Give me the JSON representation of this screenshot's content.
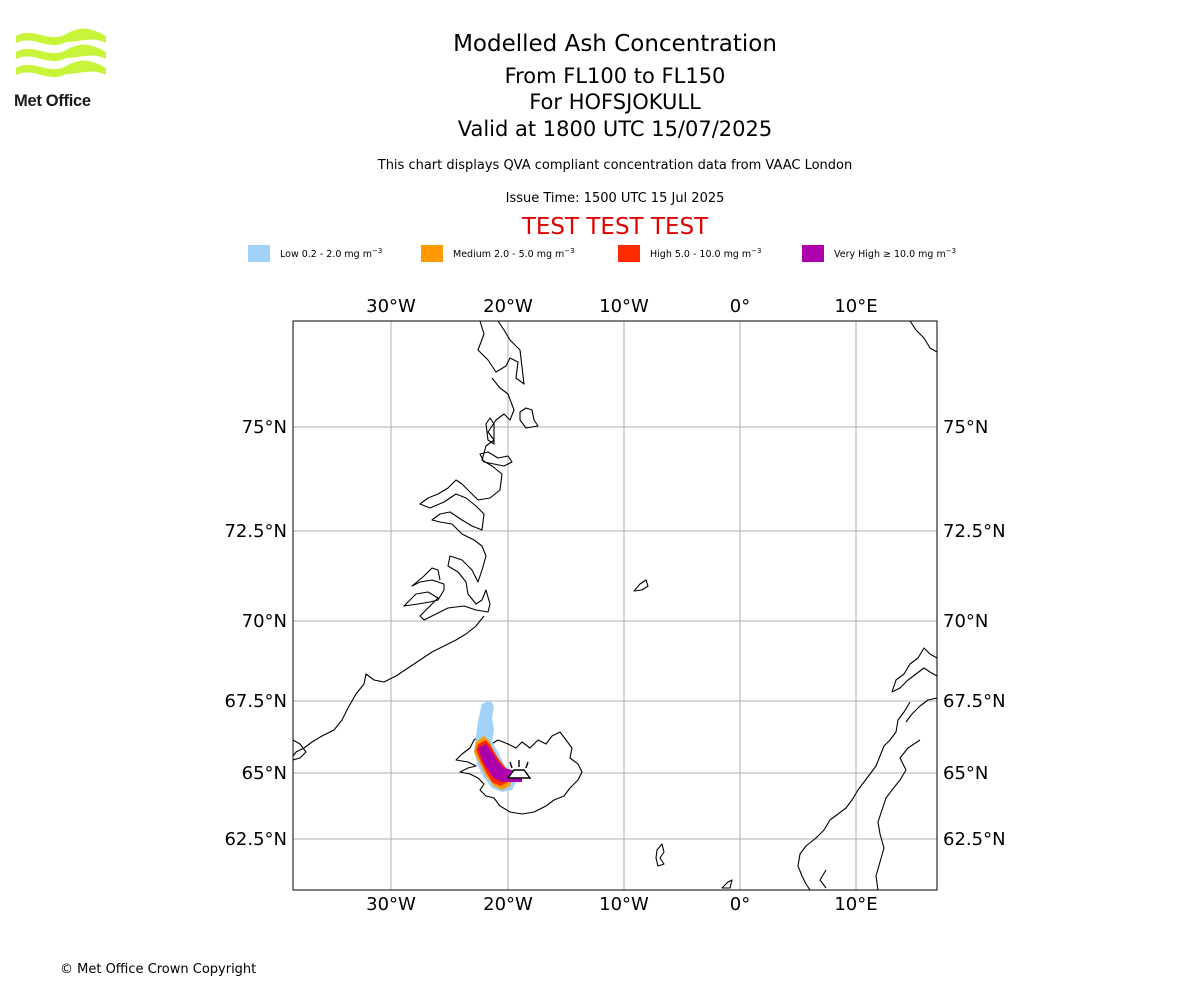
{
  "brand": {
    "name": "Met Office",
    "logo_color": "#c8f53a"
  },
  "header": {
    "title": "Modelled Ash Concentration",
    "levels": "From FL100 to FL150",
    "volcano": "For HOFSJOKULL",
    "valid": "Valid at 1800 UTC 15/07/2025",
    "source_note": "This chart displays QVA compliant concentration data from VAAC London",
    "issue_time": "Issue Time: 1500 UTC 15 Jul 2025",
    "test_banner": "TEST TEST TEST"
  },
  "legend": [
    {
      "label": "Low 0.2 - 2.0 mg m",
      "exp": "−3",
      "color": "#a0d2fa"
    },
    {
      "label": "Medium 2.0 - 5.0 mg m",
      "exp": "−3",
      "color": "#ff9900"
    },
    {
      "label": "High 5.0 - 10.0 mg m",
      "exp": "−3",
      "color": "#ff2a00"
    },
    {
      "label": "Very High  ≥  10.0 mg m",
      "exp": "−3",
      "color": "#ad00ad"
    }
  ],
  "map": {
    "lon_ticks": [
      "30°W",
      "20°W",
      "10°W",
      "0°",
      "10°E"
    ],
    "lat_ticks": [
      "75°N",
      "72.5°N",
      "70°N",
      "67.5°N",
      "65°N",
      "62.5°N"
    ],
    "grid": true
  },
  "footer": {
    "copyright": "© Met Office Crown Copyright"
  }
}
